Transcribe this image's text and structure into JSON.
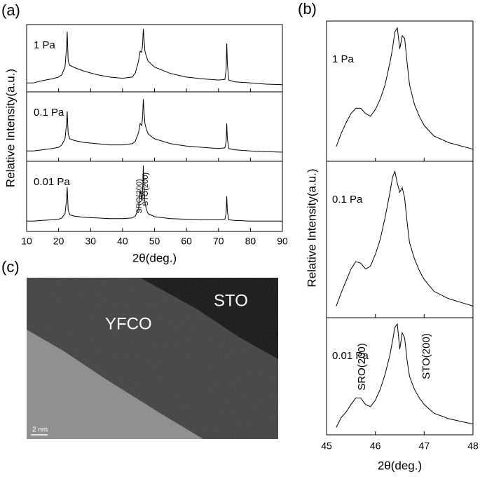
{
  "chart_data": [
    {
      "type": "line",
      "label": "(a)",
      "x_label": "2θ(deg.)",
      "y_label": "Relative Intensity(a.u.)",
      "xlim": [
        10,
        90
      ],
      "xticks": [
        10,
        20,
        30,
        40,
        50,
        60,
        70,
        80,
        90
      ],
      "ylim": [
        0,
        100
      ],
      "x": [
        10,
        12,
        15,
        18,
        20,
        21,
        22,
        22.5,
        22.7,
        23,
        23.5,
        25,
        28,
        32,
        36,
        40,
        43,
        44,
        45,
        45.5,
        46,
        46.3,
        46.5,
        46.7,
        47,
        47.5,
        48,
        50,
        55,
        60,
        65,
        70,
        72,
        72.4,
        72.6,
        72.8,
        73.2,
        75,
        80,
        85,
        90
      ],
      "series": [
        {
          "name": "1 Pa",
          "color": "#000000",
          "values": [
            8,
            8,
            12,
            15,
            18,
            22,
            35,
            70,
            95,
            45,
            38,
            34,
            28,
            22,
            18,
            16,
            18,
            25,
            45,
            62,
            60,
            75,
            100,
            85,
            62,
            52,
            45,
            35,
            24,
            18,
            15,
            13,
            14,
            30,
            75,
            40,
            13,
            10,
            8,
            6,
            5
          ]
        },
        {
          "name": "0.1 Pa",
          "color": "#000000",
          "values": [
            10,
            10,
            12,
            14,
            16,
            20,
            30,
            55,
            75,
            38,
            30,
            27,
            24,
            22,
            20,
            20,
            22,
            26,
            40,
            55,
            52,
            68,
            95,
            78,
            55,
            45,
            38,
            30,
            22,
            18,
            16,
            14,
            15,
            25,
            55,
            30,
            14,
            12,
            10,
            9,
            8
          ]
        },
        {
          "name": "0.01 Pa",
          "color": "#000000",
          "values": [
            10,
            10,
            11,
            12,
            13,
            15,
            22,
            45,
            65,
            28,
            20,
            18,
            16,
            15,
            14,
            14,
            15,
            18,
            30,
            60,
            45,
            62,
            100,
            70,
            40,
            28,
            22,
            17,
            14,
            13,
            12,
            12,
            13,
            22,
            50,
            26,
            12,
            11,
            10,
            10,
            10
          ]
        }
      ],
      "annotations": [
        "SRO(200)",
        "STO(200)"
      ]
    },
    {
      "type": "line",
      "label": "(b)",
      "x_label": "2θ(deg.)",
      "y_label": "Relative Intensity(a.u.)",
      "xlim": [
        45,
        48
      ],
      "xticks": [
        45,
        46,
        47,
        48
      ],
      "ylim": [
        0,
        100
      ],
      "x": [
        45,
        45.2,
        45.3,
        45.4,
        45.5,
        45.6,
        45.7,
        45.8,
        45.9,
        46,
        46.1,
        46.2,
        46.3,
        46.35,
        46.4,
        46.45,
        46.5,
        46.55,
        46.6,
        46.65,
        46.7,
        46.8,
        46.9,
        47,
        47.2,
        47.5,
        47.8,
        48
      ],
      "series": [
        {
          "name": "1 Pa",
          "color": "#000000",
          "values": [
            null,
            8,
            18,
            26,
            33,
            37,
            37,
            33,
            31,
            36,
            44,
            55,
            72,
            82,
            95,
            98,
            82,
            92,
            90,
            72,
            55,
            40,
            31,
            24,
            16,
            11,
            8,
            6
          ]
        },
        {
          "name": "0.1 Pa",
          "color": "#000000",
          "values": [
            null,
            5,
            14,
            22,
            30,
            35,
            34,
            30,
            32,
            40,
            50,
            65,
            82,
            92,
            96,
            88,
            82,
            85,
            78,
            62,
            48,
            37,
            29,
            23,
            15,
            10,
            7,
            5
          ]
        },
        {
          "name": "0.01 Pa",
          "color": "#000000",
          "values": [
            null,
            3,
            12,
            17,
            24,
            30,
            30,
            24,
            22,
            28,
            38,
            52,
            70,
            82,
            95,
            98,
            75,
            90,
            85,
            65,
            50,
            38,
            30,
            24,
            16,
            11,
            8,
            6
          ]
        }
      ],
      "annotations": [
        "SRO(200)",
        "STO(200)"
      ]
    }
  ],
  "image": {
    "label": "(c)",
    "regions": [
      "YFCO",
      "STO"
    ],
    "scale_bar": "2 nm"
  }
}
